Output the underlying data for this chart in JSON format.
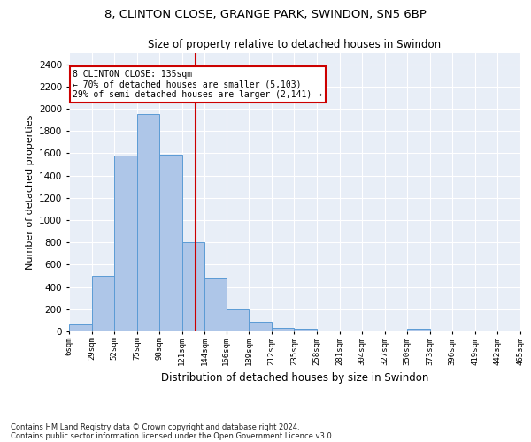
{
  "title1": "8, CLINTON CLOSE, GRANGE PARK, SWINDON, SN5 6BP",
  "title2": "Size of property relative to detached houses in Swindon",
  "xlabel": "Distribution of detached houses by size in Swindon",
  "ylabel": "Number of detached properties",
  "footnote1": "Contains HM Land Registry data © Crown copyright and database right 2024.",
  "footnote2": "Contains public sector information licensed under the Open Government Licence v3.0.",
  "annotation_line1": "8 CLINTON CLOSE: 135sqm",
  "annotation_line2": "← 70% of detached houses are smaller (5,103)",
  "annotation_line3": "29% of semi-detached houses are larger (2,141) →",
  "property_size": 135,
  "bar_color": "#aec6e8",
  "bar_edge_color": "#5b9bd5",
  "vline_color": "#cc0000",
  "background_color": "#e8eef7",
  "tick_labels": [
    "6sqm",
    "29sqm",
    "52sqm",
    "75sqm",
    "98sqm",
    "121sqm",
    "144sqm",
    "166sqm",
    "189sqm",
    "212sqm",
    "235sqm",
    "258sqm",
    "281sqm",
    "304sqm",
    "327sqm",
    "350sqm",
    "373sqm",
    "396sqm",
    "419sqm",
    "442sqm",
    "465sqm"
  ],
  "bin_edges": [
    6,
    29,
    52,
    75,
    98,
    121,
    144,
    166,
    189,
    212,
    235,
    258,
    281,
    304,
    327,
    350,
    373,
    396,
    419,
    442,
    465
  ],
  "bar_heights": [
    60,
    500,
    1580,
    1950,
    1590,
    800,
    475,
    195,
    90,
    35,
    27,
    0,
    0,
    0,
    0,
    20,
    0,
    0,
    0,
    0
  ],
  "ylim": [
    0,
    2500
  ],
  "yticks": [
    0,
    200,
    400,
    600,
    800,
    1000,
    1200,
    1400,
    1600,
    1800,
    2000,
    2200,
    2400
  ],
  "figwidth": 6.0,
  "figheight": 5.0,
  "dpi": 100
}
